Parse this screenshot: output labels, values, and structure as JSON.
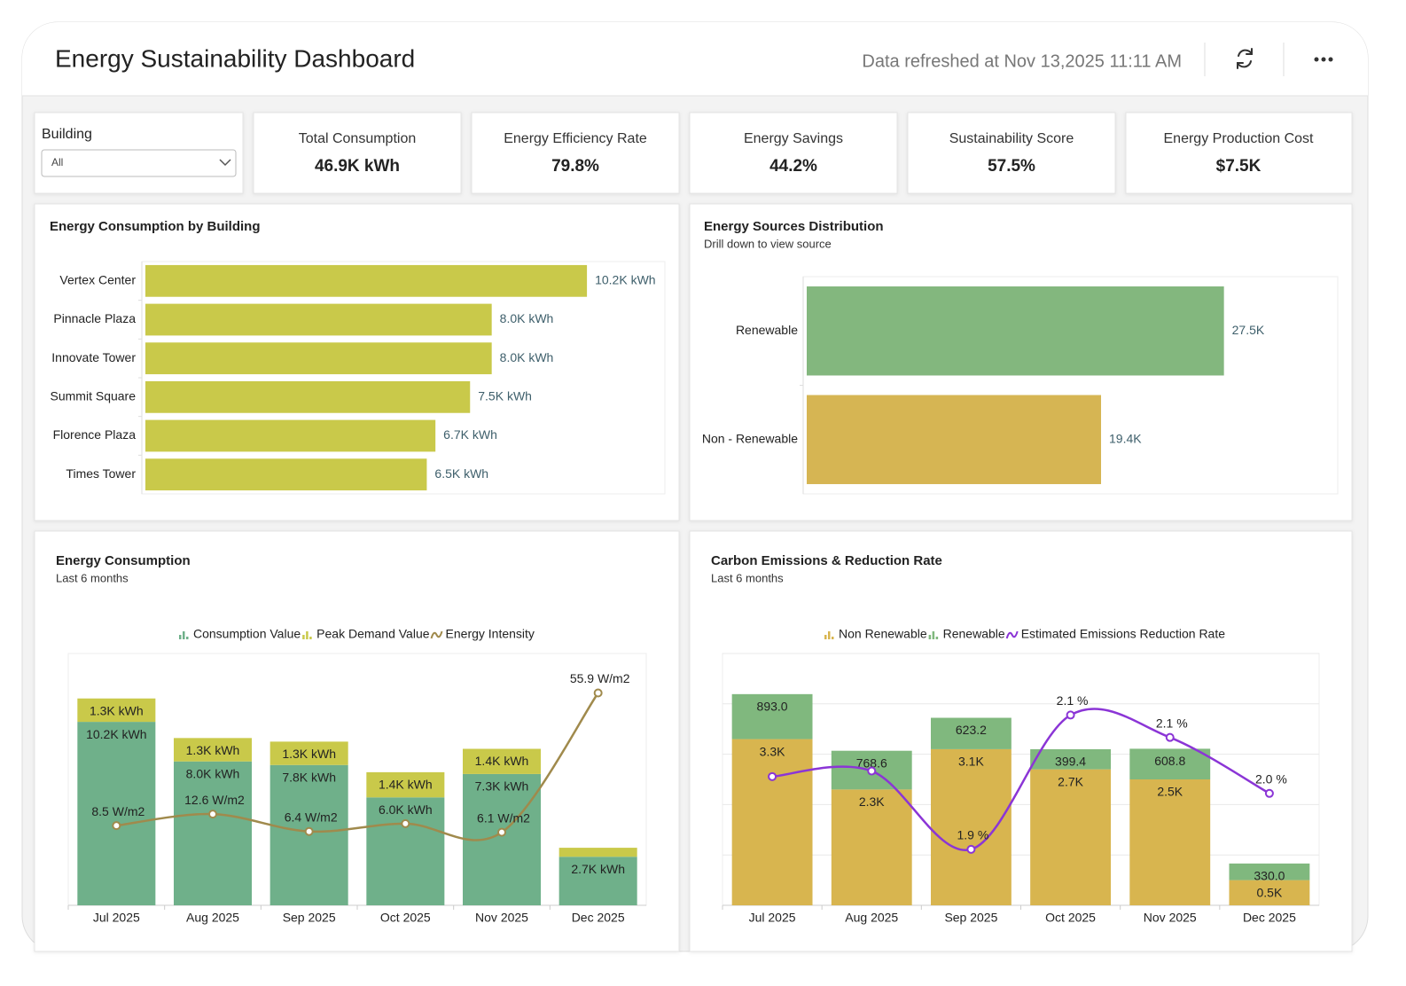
{
  "header": {
    "title": "Energy Sustainability Dashboard",
    "refreshed": "Data refreshed at Nov 13,2025 11:11 AM"
  },
  "filter": {
    "label": "Building",
    "value": "All"
  },
  "kpis": [
    {
      "label": "Total Consumption",
      "value": "46.9K kWh"
    },
    {
      "label": "Energy Efficiency Rate",
      "value": "79.8%"
    },
    {
      "label": "Energy Savings",
      "value": "44.2%"
    },
    {
      "label": "Sustainability Score",
      "value": "57.5%"
    },
    {
      "label": "Energy Production Cost",
      "value": "$7.5K"
    }
  ],
  "chart_data": [
    {
      "type": "hbar",
      "title": "Energy Consumption by Building",
      "categories": [
        "Vertex Center",
        "Pinnacle Plaza",
        "Innovate Tower",
        "Summit Square",
        "Florence Plaza",
        "Times Tower"
      ],
      "values": [
        10200,
        8000,
        8000,
        7500,
        6700,
        6500
      ],
      "value_labels": [
        "10.2K kWh",
        "8.0K kWh",
        "8.0K kWh",
        "7.5K kWh",
        "6.7K kWh",
        "6.5K kWh"
      ],
      "color": "#c9c94a",
      "xlim": [
        0,
        12000
      ]
    },
    {
      "type": "hbar",
      "title": "Energy Sources Distribution",
      "subtitle": "Drill down to view source",
      "categories": [
        "Renewable",
        "Non - Renewable"
      ],
      "values": [
        27500,
        19400
      ],
      "value_labels": [
        "27.5K",
        "19.4K"
      ],
      "colors": [
        "#83b77e",
        "#d6b553"
      ],
      "xlim": [
        0,
        35000
      ]
    },
    {
      "type": "combo",
      "title": "Energy Consumption",
      "subtitle": "Last 6 months",
      "categories": [
        "Jul 2025",
        "Aug 2025",
        "Sep 2025",
        "Oct 2025",
        "Nov 2025",
        "Dec 2025"
      ],
      "ylim": [
        0,
        14000
      ],
      "y2lim": [
        -20,
        70
      ],
      "series": [
        {
          "name": "Consumption Value",
          "color": "#6fb08a",
          "values": [
            10200,
            8000,
            7800,
            6000,
            7300,
            2700
          ],
          "value_labels": [
            "10.2K kWh",
            "8.0K kWh",
            "7.8K kWh",
            "6.0K kWh",
            "7.3K kWh",
            "2.7K kWh"
          ]
        },
        {
          "name": "Peak Demand Value",
          "color": "#c9c94a",
          "values": [
            1300,
            1300,
            1300,
            1400,
            1400,
            500
          ],
          "value_labels": [
            "1.3K kWh",
            "1.3K kWh",
            "1.3K kWh",
            "1.4K kWh",
            "1.4K kWh",
            null
          ]
        },
        {
          "name": "Energy Intensity",
          "color": "#a08a4c",
          "axis": "y2",
          "values": [
            8.5,
            12.6,
            6.4,
            9.2,
            6.1,
            55.9
          ],
          "value_labels": [
            "8.5 W/m2",
            "12.6 W/m2",
            "6.4 W/m2",
            null,
            "6.1 W/m2",
            "55.9 W/m2"
          ]
        }
      ]
    },
    {
      "type": "combo",
      "title": "Carbon Emissions & Reduction Rate",
      "subtitle": "Last 6 months",
      "categories": [
        "Jul 2025",
        "Aug 2025",
        "Sep 2025",
        "Oct 2025",
        "Nov 2025",
        "Dec 2025"
      ],
      "ylim": [
        0,
        5000
      ],
      "yticks": [
        0,
        1000,
        2000,
        3000,
        4000,
        5000
      ],
      "grid": true,
      "y2lim": [
        1.8,
        2.25
      ],
      "series": [
        {
          "name": "Non Renewable",
          "color": "#d8b54f",
          "values": [
            3300,
            2300,
            3100,
            2700,
            2500,
            500
          ],
          "value_labels": [
            "3.3K",
            "2.3K",
            "3.1K",
            "2.7K",
            "2.5K",
            "0.5K"
          ]
        },
        {
          "name": "Renewable",
          "color": "#80b87e",
          "values": [
            893.0,
            768.6,
            623.2,
            399.4,
            608.8,
            330.0
          ],
          "value_labels": [
            "893.0",
            "768.6",
            "623.2",
            "399.4",
            "608.8",
            "330.0"
          ]
        },
        {
          "name": "Estimated Emissions Reduction Rate",
          "color": "#8b35d6",
          "axis": "y2",
          "values": [
            2.03,
            2.04,
            1.9,
            2.14,
            2.1,
            2.0
          ],
          "value_labels": [
            null,
            null,
            "1.9 %",
            "2.1 %",
            "2.1 %",
            "2.0 %"
          ]
        }
      ]
    }
  ]
}
